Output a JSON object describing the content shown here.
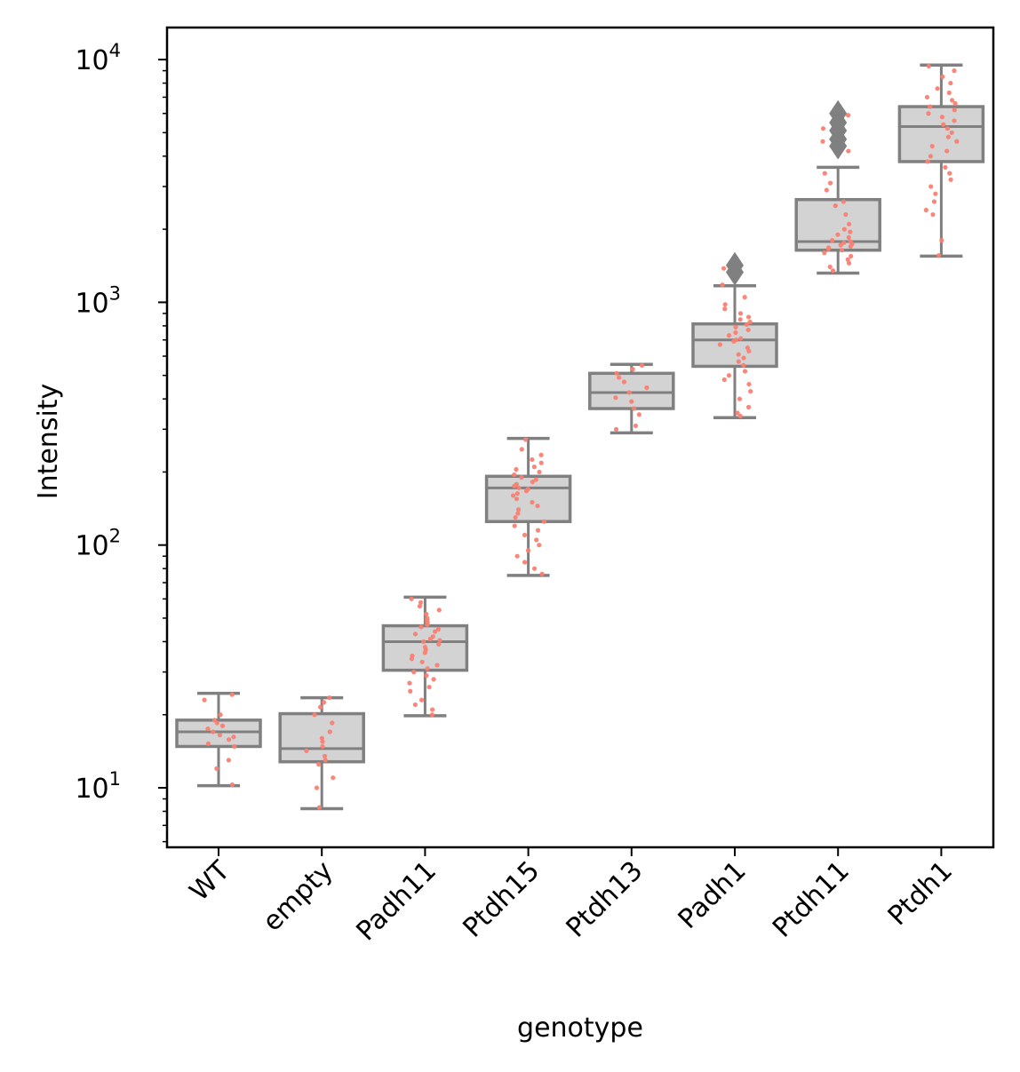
{
  "chart_data": {
    "type": "box",
    "xlabel": "genotype",
    "ylabel": "Intensity",
    "yscale": "log",
    "ylim": [
      5.8,
      13500
    ],
    "y_ticks": [
      10,
      100,
      1000,
      10000
    ],
    "y_tick_labels": [
      {
        "base": "10",
        "exp": "1"
      },
      {
        "base": "10",
        "exp": "2"
      },
      {
        "base": "10",
        "exp": "3"
      },
      {
        "base": "10",
        "exp": "4"
      }
    ],
    "categories": [
      "WT",
      "empty",
      "Padh11",
      "Ptdh15",
      "Ptdh13",
      "Padh1",
      "Ptdh11",
      "Ptdh1"
    ],
    "box_color": "#d3d3d3",
    "line_color": "#808080",
    "point_color": "#fa8072",
    "boxes": [
      {
        "category": "WT",
        "whislo": 10.2,
        "q1": 14.8,
        "med": 17.0,
        "q3": 19.0,
        "whishi": 24.5,
        "fliers": [],
        "points": [
          24.2,
          23.0,
          20.0,
          19.0,
          18.5,
          18.0,
          17.5,
          17.0,
          16.5,
          16.2,
          15.8,
          15.2,
          14.8,
          13.0,
          12.0,
          10.3
        ]
      },
      {
        "category": "empty",
        "whislo": 8.2,
        "q1": 12.8,
        "med": 14.5,
        "q3": 20.2,
        "whishi": 23.5,
        "fliers": [],
        "points": [
          23.5,
          22.5,
          21.5,
          20.0,
          18.5,
          17.0,
          16.0,
          15.5,
          14.8,
          14.2,
          13.5,
          13.0,
          12.5,
          11.0,
          10.0,
          8.3
        ]
      },
      {
        "category": "Padh11",
        "whislo": 19.8,
        "q1": 30.5,
        "med": 40.0,
        "q3": 46.5,
        "whishi": 61.0,
        "fliers": [],
        "points": [
          60.0,
          58.0,
          56.0,
          54.0,
          52.0,
          50.0,
          49.0,
          48.0,
          47.0,
          46.0,
          45.0,
          44.0,
          43.0,
          42.0,
          41.0,
          40.5,
          40.0,
          39.0,
          38.0,
          37.0,
          36.0,
          35.0,
          34.0,
          33.0,
          32.0,
          31.0,
          30.0,
          29.0,
          28.0,
          27.0,
          26.0,
          25.0,
          23.0,
          22.0,
          21.0,
          20.0
        ]
      },
      {
        "category": "Ptdh15",
        "whislo": 75.0,
        "q1": 125.0,
        "med": 172.0,
        "q3": 192.0,
        "whishi": 275.0,
        "fliers": [],
        "points": [
          272,
          248,
          235,
          225,
          218,
          210,
          205,
          200,
          195,
          190,
          186,
          182,
          178,
          175,
          172,
          170,
          167,
          163,
          160,
          155,
          150,
          145,
          140,
          135,
          130,
          125,
          120,
          115,
          110,
          105,
          100,
          95,
          90,
          85,
          80,
          76
        ]
      },
      {
        "category": "Ptdh13",
        "whislo": 290.0,
        "q1": 365.0,
        "med": 425.0,
        "q3": 510.0,
        "whishi": 555.0,
        "fliers": [],
        "points": [
          550,
          530,
          510,
          490,
          470,
          445,
          425,
          405,
          390,
          365,
          345,
          310,
          300
        ]
      },
      {
        "category": "Padh1",
        "whislo": 335.0,
        "q1": 545.0,
        "med": 700.0,
        "q3": 815.0,
        "whishi": 1170.0,
        "fliers": [
          1420,
          1330
        ],
        "points": [
          1380,
          1180,
          1050,
          980,
          940,
          900,
          870,
          850,
          830,
          810,
          790,
          770,
          750,
          730,
          710,
          700,
          690,
          670,
          650,
          630,
          610,
          590,
          570,
          550,
          520,
          500,
          480,
          460,
          430,
          400,
          370,
          350,
          340
        ]
      },
      {
        "category": "Ptdh11",
        "whislo": 1320.0,
        "q1": 1640.0,
        "med": 1780.0,
        "q3": 2650.0,
        "whishi": 3600.0,
        "fliers": [
          6000,
          5500,
          5100,
          4700,
          4400
        ],
        "points": [
          5900,
          5200,
          4600,
          4200,
          3400,
          3100,
          2900,
          2600,
          2500,
          2300,
          2100,
          2000,
          1950,
          1900,
          1850,
          1800,
          1780,
          1760,
          1740,
          1720,
          1700,
          1680,
          1660,
          1640,
          1600,
          1550,
          1500,
          1450,
          1400,
          1350
        ]
      },
      {
        "category": "Ptdh1",
        "whislo": 1550.0,
        "q1": 3800.0,
        "med": 5300.0,
        "q3": 6400.0,
        "whishi": 9500.0,
        "fliers": [],
        "points": [
          9400,
          9000,
          8500,
          8000,
          7600,
          7300,
          7000,
          6800,
          6600,
          6400,
          6200,
          6000,
          5800,
          5600,
          5400,
          5200,
          5000,
          4800,
          4600,
          4400,
          4200,
          4000,
          3800,
          3600,
          3400,
          3200,
          3000,
          2800,
          2600,
          2400,
          2300,
          1800,
          1560
        ]
      }
    ]
  }
}
